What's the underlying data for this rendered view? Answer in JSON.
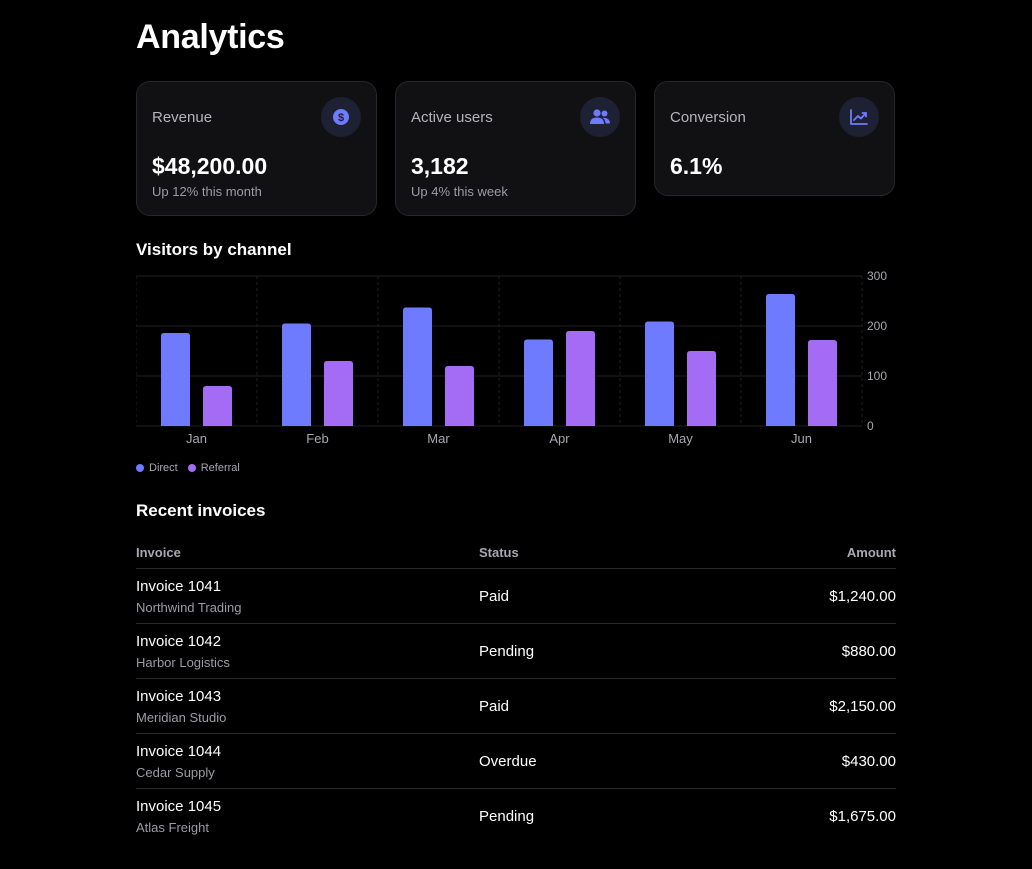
{
  "page": {
    "title": "Analytics"
  },
  "cards": [
    {
      "label": "Revenue",
      "value": "$48,200.00",
      "sub": "Up 12% this month",
      "icon": "dollar-icon"
    },
    {
      "label": "Active users",
      "value": "3,182",
      "sub": "Up 4% this week",
      "icon": "users-icon"
    },
    {
      "label": "Conversion",
      "value": "6.1%",
      "sub": "",
      "icon": "trend-chart-icon"
    }
  ],
  "chart_section": {
    "title": "Visitors by channel"
  },
  "chart_data": {
    "type": "bar",
    "categories": [
      "Jan",
      "Feb",
      "Mar",
      "Apr",
      "May",
      "Jun"
    ],
    "series": [
      {
        "name": "Direct",
        "color": "#6e7bff",
        "values": [
          186,
          205,
          237,
          173,
          209,
          264
        ]
      },
      {
        "name": "Referral",
        "color": "#a46bf5",
        "values": [
          80,
          130,
          120,
          190,
          150,
          172
        ]
      }
    ],
    "ylim": [
      0,
      300
    ],
    "yticks": [
      "0",
      "100",
      "200",
      "300"
    ],
    "y_axis_side": "right",
    "grid": true,
    "legend": "bottom-left"
  },
  "invoices": {
    "title": "Recent invoices",
    "headers": {
      "invoice": "Invoice",
      "status": "Status",
      "amount": "Amount"
    },
    "rows": [
      {
        "invoice": "Invoice 1041",
        "client": "Northwind Trading",
        "status": "Paid",
        "amount": "$1,240.00"
      },
      {
        "invoice": "Invoice 1042",
        "client": "Harbor Logistics",
        "status": "Pending",
        "amount": "$880.00"
      },
      {
        "invoice": "Invoice 1043",
        "client": "Meridian Studio",
        "status": "Paid",
        "amount": "$2,150.00"
      },
      {
        "invoice": "Invoice 1044",
        "client": "Cedar Supply",
        "status": "Overdue",
        "amount": "$430.00"
      },
      {
        "invoice": "Invoice 1045",
        "client": "Atlas Freight",
        "status": "Pending",
        "amount": "$1,675.00"
      }
    ]
  },
  "colors": {
    "accent": "#6e7bff",
    "accent2": "#a46bf5",
    "card_bg": "#111113"
  }
}
